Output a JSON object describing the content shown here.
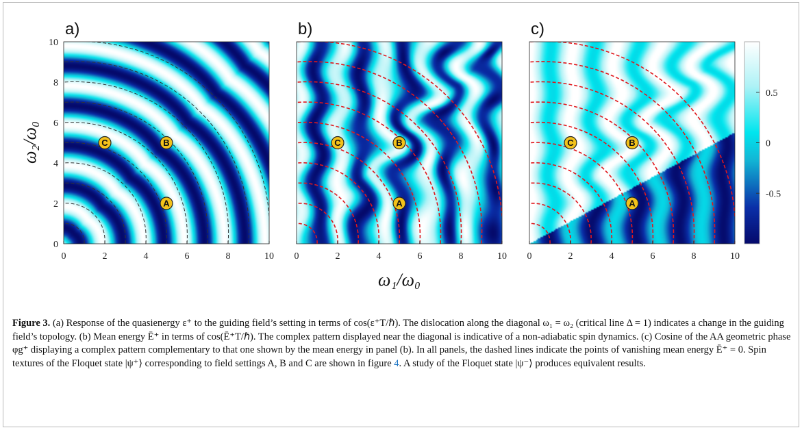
{
  "figure": {
    "panel_labels": [
      "a)",
      "b)",
      "c)"
    ],
    "ylabel": "ω₂/ω₀",
    "xlabel": "ω₁/ω₀",
    "x_ticks": [
      "0",
      "2",
      "4",
      "6",
      "8",
      "10"
    ],
    "y_ticks": [
      "0",
      "2",
      "4",
      "6",
      "8",
      "10"
    ],
    "markers": [
      {
        "label": "A",
        "w1": 5,
        "w2": 2
      },
      {
        "label": "B",
        "w1": 5,
        "w2": 5
      },
      {
        "label": "C",
        "w1": 2,
        "w2": 5
      }
    ],
    "colorbar": {
      "ticks": [
        {
          "value": 0.5,
          "label": "0.5"
        },
        {
          "value": 0,
          "label": "0"
        },
        {
          "value": -0.5,
          "label": "-0.5"
        }
      ],
      "range": [
        -1,
        1
      ],
      "colors": [
        "#050a6b",
        "#0a2fa8",
        "#12b8d6",
        "#00e5ee",
        "#aef2f6",
        "#ffffff"
      ]
    },
    "dashed_line_colors": [
      "#333333",
      "#e0171c",
      "#e0171c"
    ]
  },
  "caption": {
    "title": "Figure 3.",
    "sentences": [
      " (a) Response of the quasienergy ε⁺ to the guiding field’s setting in terms of cos(ε⁺T/ℏ). The dislocation along the diagonal ω₁ = ω₂ (critical line Δ = 1) indicates a change in the guiding field’s topology. (b) Mean energy Ē⁺ in terms of cos(Ē⁺T/ℏ). The complex pattern displayed near the diagonal is indicative of a non-adiabatic spin dynamics. (c) Cosine of the AA geometric phase φg⁺ displaying a complex pattern complementary to that one shown by the mean energy in panel (b). In all panels, the dashed lines indicate the points of vanishing mean energy Ē⁺ = 0. Spin textures of the Floquet state |ψ⁺⟩ corresponding to field settings A, B and C are shown in figure ",
      "4",
      ". A study of the Floquet state |ψ⁻⟩ produces equivalent results."
    ]
  }
}
